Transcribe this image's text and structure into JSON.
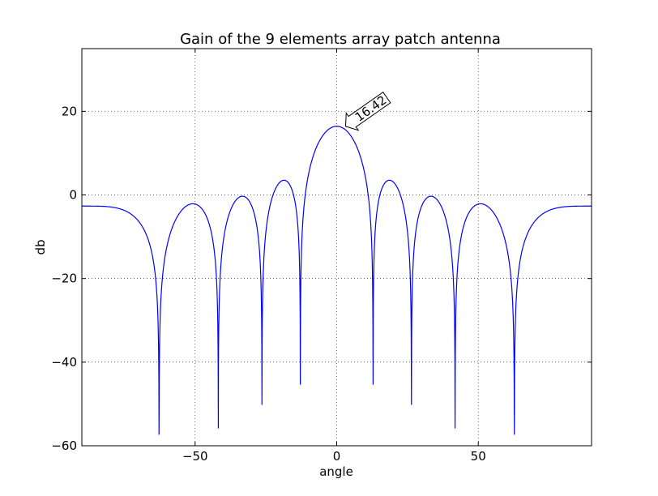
{
  "chart_data": {
    "type": "line",
    "title": "Gain of the 9 elements array patch antenna",
    "xlabel": "angle",
    "ylabel": "db",
    "xlim": [
      -90,
      90
    ],
    "ylim": [
      -60,
      35
    ],
    "xticks": [
      -50,
      0,
      50
    ],
    "xtick_labels": [
      "−50",
      "0",
      "50"
    ],
    "yticks": [
      -60,
      -40,
      -20,
      0,
      20
    ],
    "ytick_labels": [
      "−60",
      "−40",
      "−20",
      "0",
      "20"
    ],
    "grid": true,
    "series": [
      {
        "color": "#0000ff",
        "peak": 16.42,
        "elements": 9,
        "floor": -60
      }
    ],
    "annotations": [
      {
        "text": "16.42",
        "x": 0,
        "y": 16.42
      }
    ]
  }
}
